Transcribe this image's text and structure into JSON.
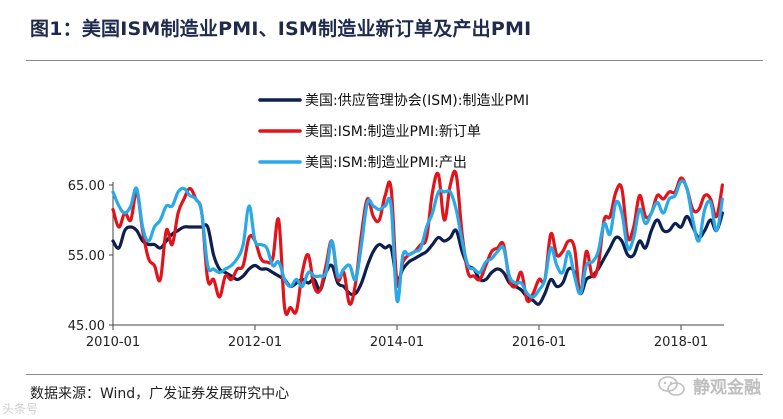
{
  "figure": {
    "title": "图1：美国ISM制造业PMI、ISM制造业新订单及产出PMI",
    "source": "数据来源：Wind，广发证券发展研究中心",
    "watermark": "静观金融",
    "watermark_left": "头条号"
  },
  "chart_data": {
    "type": "line",
    "title": "美国ISM制造业PMI、ISM制造业新订单及产出PMI",
    "xlabel": "",
    "ylabel": "",
    "x_start": "2010-01",
    "x_step": "month",
    "x_range": [
      "2010-01",
      "2018-08"
    ],
    "xticks": [
      "2010-01",
      "2012-01",
      "2014-01",
      "2016-01",
      "2018-01"
    ],
    "ylim": [
      45,
      65
    ],
    "yticks": [
      45,
      55,
      65
    ],
    "ytick_labels": [
      "45.00",
      "55.00",
      "65.00"
    ],
    "legend_position": "top-center",
    "grid": false,
    "series": [
      {
        "name": "美国:供应管理协会(ISM):制造业PMI",
        "color": "#0d1f4f",
        "values": [
          57.0,
          56.0,
          58.5,
          59.0,
          58.5,
          57.0,
          56.5,
          56.5,
          56.0,
          57.0,
          58.0,
          58.5,
          59.0,
          59.0,
          59.0,
          59.0,
          59.0,
          55.0,
          53.0,
          52.5,
          52.0,
          51.5,
          52.0,
          53.0,
          53.5,
          53.0,
          53.0,
          52.5,
          52.0,
          51.5,
          50.5,
          51.0,
          51.5,
          51.0,
          51.5,
          50.0,
          52.5,
          53.5,
          51.0,
          50.5,
          49.5,
          49.5,
          51.0,
          53.5,
          55.5,
          56.5,
          56.0,
          56.0,
          51.5,
          53.0,
          54.0,
          54.5,
          55.0,
          55.5,
          56.5,
          57.5,
          57.0,
          57.5,
          58.5,
          55.5,
          53.5,
          53.0,
          51.5,
          51.5,
          52.5,
          53.0,
          52.5,
          51.0,
          50.5,
          50.0,
          49.0,
          48.5,
          48.0,
          49.5,
          51.5,
          50.5,
          51.0,
          53.0,
          52.5,
          49.5,
          51.5,
          52.0,
          53.0,
          54.5,
          56.0,
          57.5,
          57.0,
          55.0,
          55.0,
          57.0,
          56.0,
          58.5,
          60.0,
          58.5,
          58.5,
          59.5,
          59.0,
          60.5,
          59.0,
          57.5,
          58.5,
          60.0,
          58.5,
          61.0
        ]
      },
      {
        "name": "美国:ISM:制造业PMI:新订单",
        "color": "#e0141a",
        "values": [
          61.5,
          59.0,
          61.0,
          60.0,
          64.0,
          58.5,
          54.5,
          53.5,
          51.5,
          58.5,
          56.5,
          61.0,
          63.0,
          64.5,
          63.0,
          61.0,
          51.5,
          51.5,
          49.0,
          52.0,
          51.5,
          53.0,
          53.5,
          57.5,
          57.0,
          54.5,
          54.0,
          54.5,
          60.0,
          47.5,
          47.5,
          47.0,
          52.5,
          55.0,
          50.5,
          50.0,
          53.5,
          57.0,
          51.5,
          52.5,
          48.0,
          51.0,
          58.0,
          63.0,
          60.5,
          60.0,
          63.5,
          64.5,
          51.0,
          54.0,
          55.0,
          55.5,
          56.5,
          57.5,
          64.0,
          66.5,
          60.0,
          65.0,
          66.5,
          58.0,
          52.5,
          52.0,
          51.5,
          53.5,
          55.5,
          56.0,
          56.5,
          51.5,
          50.5,
          52.5,
          48.5,
          49.5,
          51.5,
          51.5,
          58.0,
          55.0,
          55.5,
          57.0,
          56.0,
          49.5,
          55.5,
          52.0,
          53.5,
          60.0,
          60.5,
          64.0,
          64.5,
          57.5,
          59.0,
          63.5,
          60.5,
          61.0,
          63.5,
          63.0,
          64.0,
          64.0,
          66.0,
          64.5,
          61.5,
          61.5,
          63.5,
          63.0,
          60.5,
          65.0
        ]
      },
      {
        "name": "美国:ISM:制造业PMI:产出",
        "color": "#28a9e8",
        "values": [
          64.0,
          62.0,
          61.0,
          62.0,
          64.5,
          59.0,
          57.0,
          59.0,
          60.0,
          62.0,
          62.0,
          64.0,
          64.5,
          63.5,
          63.0,
          61.0,
          53.5,
          53.0,
          52.5,
          53.0,
          53.5,
          54.5,
          56.5,
          62.0,
          57.0,
          56.5,
          56.0,
          53.5,
          54.0,
          51.5,
          50.5,
          51.5,
          50.5,
          52.5,
          52.0,
          52.0,
          52.5,
          57.0,
          52.0,
          53.0,
          53.5,
          51.5,
          56.5,
          62.5,
          62.0,
          61.5,
          62.0,
          62.0,
          48.5,
          55.0,
          55.0,
          55.5,
          56.0,
          59.0,
          61.0,
          64.0,
          64.0,
          64.0,
          61.5,
          57.0,
          53.5,
          53.0,
          52.5,
          54.0,
          54.5,
          55.5,
          56.0,
          52.0,
          51.0,
          51.0,
          49.5,
          49.0,
          50.0,
          51.5,
          56.0,
          53.5,
          52.5,
          55.5,
          52.0,
          49.5,
          53.5,
          54.0,
          55.5,
          59.5,
          58.0,
          62.5,
          61.0,
          56.0,
          57.5,
          61.5,
          59.5,
          61.0,
          62.5,
          61.0,
          63.0,
          63.5,
          65.5,
          64.5,
          60.0,
          57.0,
          61.5,
          62.5,
          58.5,
          63.0
        ]
      }
    ]
  }
}
